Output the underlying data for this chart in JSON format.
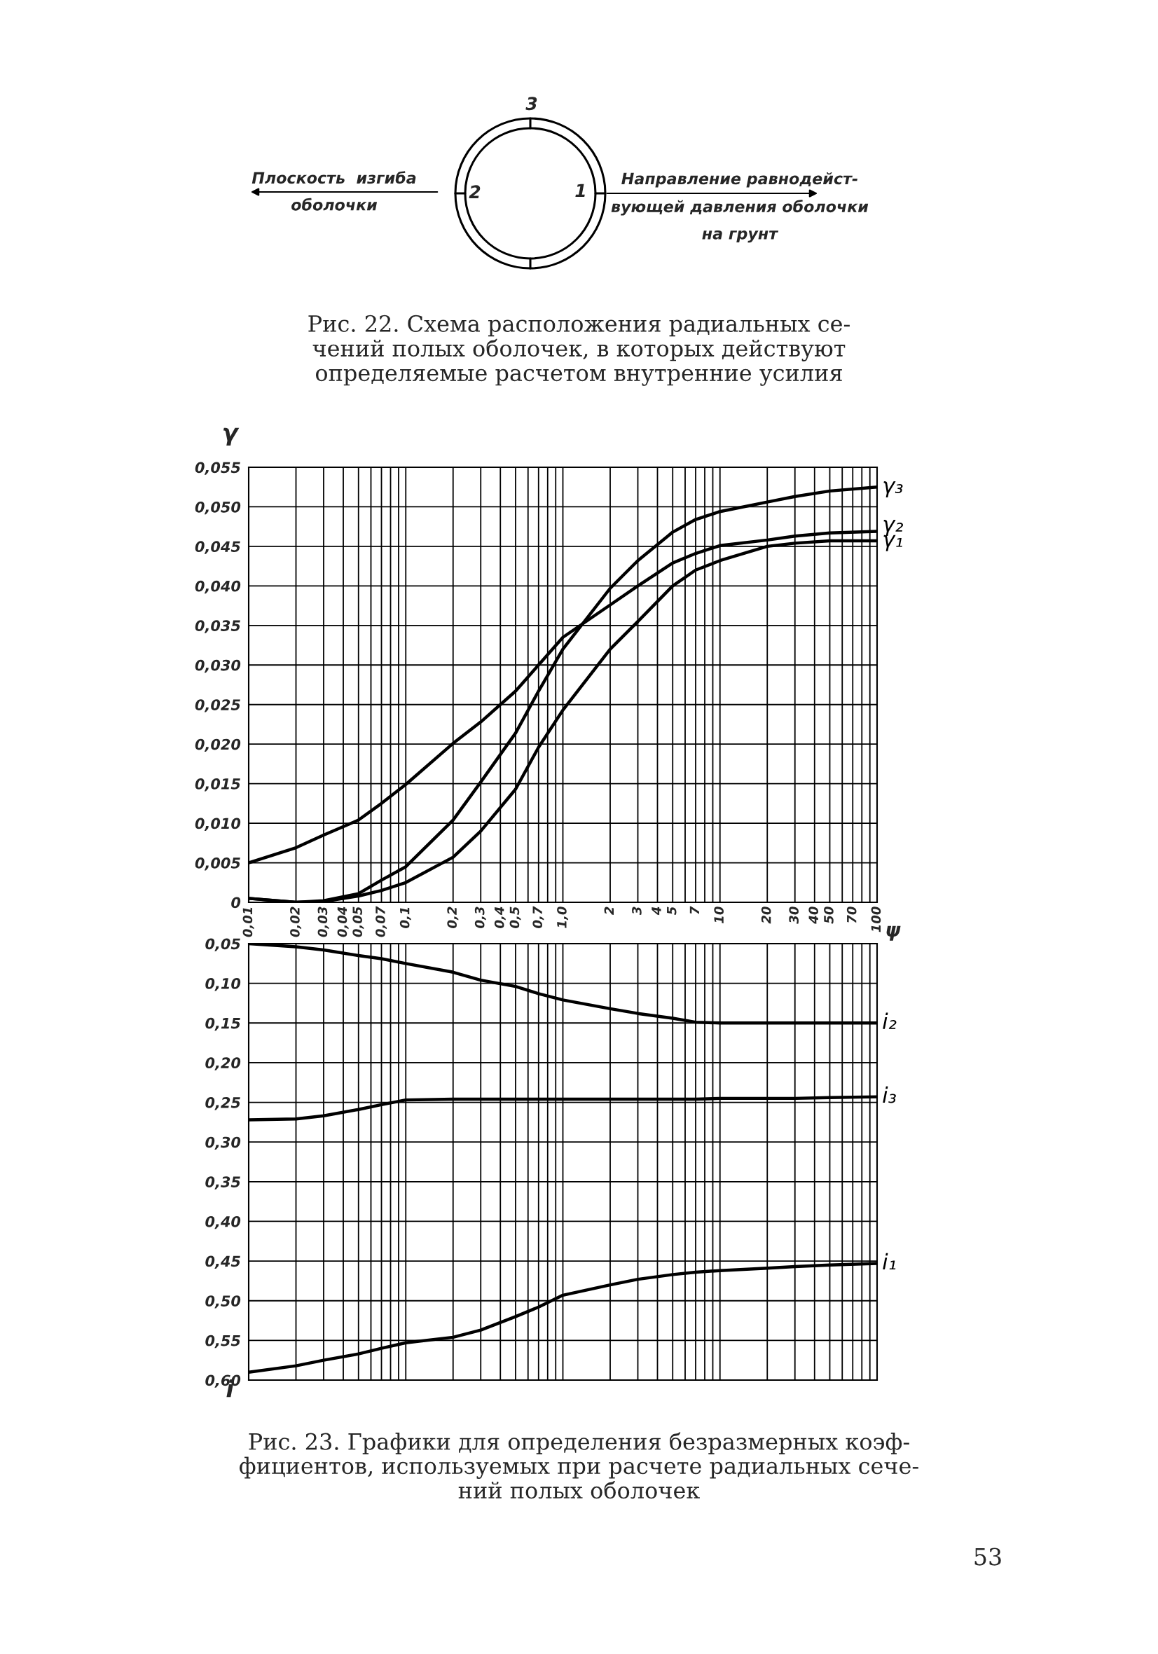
{
  "chart_data": [
    {
      "type": "other",
      "title": "Рис. 22. Схема расположения радиальных се-\nчений полых оболочек, в которых действуют\nопределяемые расчетом внутренние усилия",
      "annotations": [
        "3",
        "2",
        "1",
        "Плоскость  изгиба\nоболочки",
        "Направление равнодейст-\nвующей давления оболочки\nна грунт"
      ]
    },
    {
      "type": "line",
      "xlabel": "ψ",
      "ylabel": "γ",
      "log": "x",
      "grid": true,
      "xlim": [
        0.01,
        100
      ],
      "ylim": [
        0,
        0.055
      ],
      "xticks": [
        {
          "value": 0.01,
          "label": "0,01"
        },
        {
          "value": 0.02,
          "label": "0,02"
        },
        {
          "value": 0.03,
          "label": "0,03"
        },
        {
          "value": 0.04,
          "label": "0,04"
        },
        {
          "value": 0.05,
          "label": "0,05"
        },
        {
          "value": 0.06,
          "label": null
        },
        {
          "value": 0.07,
          "label": "0,07"
        },
        {
          "value": 0.08,
          "label": null
        },
        {
          "value": 0.09,
          "label": null
        },
        {
          "value": 0.1,
          "label": "0,1"
        },
        {
          "value": 0.2,
          "label": "0,2"
        },
        {
          "value": 0.3,
          "label": "0,3"
        },
        {
          "value": 0.4,
          "label": "0,4"
        },
        {
          "value": 0.5,
          "label": "0,5"
        },
        {
          "value": 0.6,
          "label": null
        },
        {
          "value": 0.7,
          "label": "0,7"
        },
        {
          "value": 0.8,
          "label": null
        },
        {
          "value": 0.9,
          "label": null
        },
        {
          "value": 1,
          "label": "1,0"
        },
        2,
        3,
        4,
        5,
        {
          "value": 6,
          "label": null
        },
        7,
        {
          "value": 8,
          "label": null
        },
        {
          "value": 9,
          "label": null
        },
        10,
        20,
        30,
        40,
        50,
        {
          "value": 60,
          "label": null
        },
        70,
        {
          "value": 80,
          "label": null
        },
        {
          "value": 90,
          "label": null
        },
        100
      ],
      "yticks": [
        0,
        {
          "value": 0.005,
          "label": "0,005"
        },
        {
          "value": 0.01,
          "label": "0,010"
        },
        {
          "value": 0.015,
          "label": "0,015"
        },
        {
          "value": 0.02,
          "label": "0,020"
        },
        {
          "value": 0.025,
          "label": "0,025"
        },
        {
          "value": 0.03,
          "label": "0,030"
        },
        {
          "value": 0.035,
          "label": "0,035"
        },
        {
          "value": 0.04,
          "label": "0,040"
        },
        {
          "value": 0.045,
          "label": "0,045"
        },
        {
          "value": 0.05,
          "label": "0,050"
        },
        {
          "value": 0.055,
          "label": "0,055"
        }
      ],
      "x": [
        0.01,
        0.02,
        0.03,
        0.05,
        0.07,
        0.1,
        0.2,
        0.3,
        0.5,
        0.7,
        1,
        2,
        3,
        5,
        7,
        10,
        20,
        30,
        50,
        100
      ],
      "series": [
        {
          "name": "γ₁",
          "color": "#000000",
          "values": [
            0.0005,
            0,
            0.0001,
            0.0008,
            0.0015,
            0.0025,
            0.0057,
            0.009,
            0.0143,
            0.0196,
            0.0243,
            0.032,
            0.0355,
            0.04,
            0.042,
            0.0432,
            0.045,
            0.0454,
            0.0457,
            0.0457
          ]
        },
        {
          "name": "γ₂",
          "color": "#000000",
          "values": [
            0.005,
            0.0069,
            0.0085,
            0.0104,
            0.0125,
            0.0149,
            0.0201,
            0.0228,
            0.0267,
            0.03,
            0.0335,
            0.0376,
            0.04,
            0.0429,
            0.0441,
            0.0451,
            0.0458,
            0.0463,
            0.0467,
            0.0469
          ]
        },
        {
          "name": "γ₃",
          "color": "#000000",
          "values": [
            0.0005,
            0,
            0.0002,
            0.0011,
            0.0028,
            0.0045,
            0.0104,
            0.0152,
            0.0214,
            0.0267,
            0.032,
            0.0397,
            0.0432,
            0.0468,
            0.0484,
            0.0494,
            0.0506,
            0.0513,
            0.052,
            0.0525
          ]
        }
      ]
    },
    {
      "type": "line",
      "ylabel": "i",
      "log": "x",
      "grid": true,
      "tick_labels": "y",
      "xlim": [
        0.01,
        100
      ],
      "ylim": [
        0.6,
        0.05
      ],
      "xticks": [
        0.01,
        0.02,
        0.03,
        0.04,
        0.05,
        0.06,
        0.07,
        0.08,
        0.09,
        0.1,
        0.2,
        0.3,
        0.4,
        0.5,
        0.6,
        0.7,
        0.8,
        0.9,
        1,
        2,
        3,
        4,
        5,
        6,
        7,
        8,
        9,
        10,
        20,
        30,
        40,
        50,
        60,
        70,
        80,
        90,
        100
      ],
      "yticks": [
        {
          "value": 0.05,
          "label": "0,05"
        },
        {
          "value": 0.1,
          "label": "0,10"
        },
        {
          "value": 0.15,
          "label": "0,15"
        },
        {
          "value": 0.2,
          "label": "0,20"
        },
        {
          "value": 0.25,
          "label": "0,25"
        },
        {
          "value": 0.3,
          "label": "0,30"
        },
        {
          "value": 0.35,
          "label": "0,35"
        },
        {
          "value": 0.4,
          "label": "0,40"
        },
        {
          "value": 0.45,
          "label": "0,45"
        },
        {
          "value": 0.5,
          "label": "0,50"
        },
        {
          "value": 0.55,
          "label": "0,55"
        },
        {
          "value": 0.6,
          "label": "0,60"
        }
      ],
      "x": [
        0.01,
        0.02,
        0.03,
        0.05,
        0.07,
        0.1,
        0.2,
        0.3,
        0.5,
        0.7,
        1,
        2,
        3,
        5,
        7,
        10,
        20,
        30,
        50,
        100
      ],
      "series": [
        {
          "name": "i₁",
          "color": "#000000",
          "values": [
            0.59,
            0.582,
            0.575,
            0.567,
            0.56,
            0.553,
            0.546,
            0.537,
            0.52,
            0.508,
            0.493,
            0.48,
            0.473,
            0.467,
            0.464,
            0.462,
            0.459,
            0.457,
            0.455,
            0.453
          ]
        },
        {
          "name": "i₂",
          "color": "#000000",
          "values": [
            0.05,
            0.054,
            0.058,
            0.065,
            0.069,
            0.075,
            0.086,
            0.096,
            0.104,
            0.113,
            0.121,
            0.132,
            0.138,
            0.144,
            0.149,
            0.15,
            0.15,
            0.15,
            0.15,
            0.15
          ]
        },
        {
          "name": "i₃",
          "color": "#000000",
          "values": [
            0.272,
            0.271,
            0.267,
            0.259,
            0.253,
            0.247,
            0.246,
            0.246,
            0.246,
            0.246,
            0.246,
            0.246,
            0.246,
            0.246,
            0.246,
            0.245,
            0.245,
            0.245,
            0.244,
            0.243
          ]
        }
      ],
      "annotations": [
        "Рис. 23. Графики для определения безразмерных коэф-\nфициентов, используемых при расчете радиальных сече-\nний полых оболочек",
        "53"
      ]
    }
  ]
}
